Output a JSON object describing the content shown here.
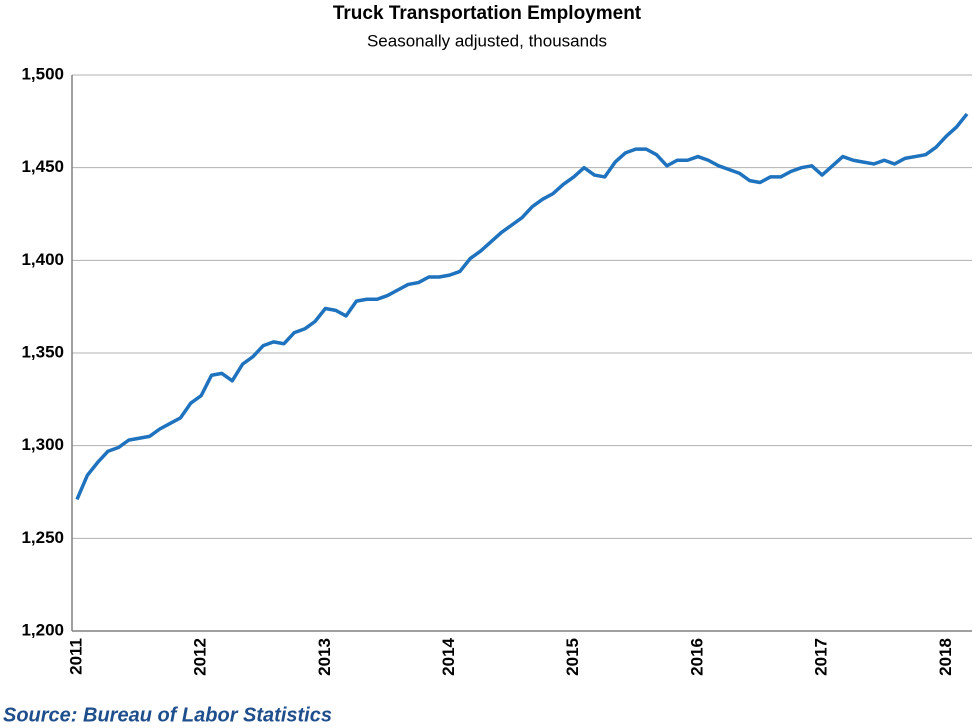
{
  "chart_data": {
    "type": "line",
    "title": "Truck Transportation Employment",
    "subtitle": "Seasonally adjusted, thousands",
    "source": "Source: Bureau of Labor Statistics",
    "categories": [
      "2011",
      null,
      null,
      null,
      null,
      null,
      null,
      null,
      null,
      null,
      null,
      null,
      "2012",
      null,
      null,
      null,
      null,
      null,
      null,
      null,
      null,
      null,
      null,
      null,
      "2013",
      null,
      null,
      null,
      null,
      null,
      null,
      null,
      null,
      null,
      null,
      null,
      "2014",
      null,
      null,
      null,
      null,
      null,
      null,
      null,
      null,
      null,
      null,
      null,
      "2015",
      null,
      null,
      null,
      null,
      null,
      null,
      null,
      null,
      null,
      null,
      null,
      "2016",
      null,
      null,
      null,
      null,
      null,
      null,
      null,
      null,
      null,
      null,
      null,
      "2017",
      null,
      null,
      null,
      null,
      null,
      null,
      null,
      null,
      null,
      null,
      null,
      "2018",
      null,
      null
    ],
    "values": [
      1271,
      1284,
      1291,
      1297,
      1299,
      1303,
      1304,
      1305,
      1309,
      1312,
      1315,
      1323,
      1327,
      1338,
      1339,
      1335,
      1344,
      1348,
      1354,
      1356,
      1355,
      1361,
      1363,
      1367,
      1374,
      1373,
      1370,
      1378,
      1379,
      1379,
      1381,
      1384,
      1387,
      1388,
      1391,
      1391,
      1392,
      1394,
      1401,
      1405,
      1410,
      1415,
      1419,
      1423,
      1429,
      1433,
      1436,
      1441,
      1445,
      1450,
      1446,
      1445,
      1453,
      1458,
      1460,
      1460,
      1457,
      1451,
      1454,
      1454,
      1456,
      1454,
      1451,
      1449,
      1447,
      1443,
      1442,
      1445,
      1445,
      1448,
      1450,
      1451,
      1446,
      1451,
      1456,
      1454,
      1453,
      1452,
      1454,
      1452,
      1455,
      1456,
      1457,
      1461,
      1467,
      1472,
      1479
    ],
    "color": "#1f72bd",
    "ylim": [
      1200,
      1500
    ],
    "yticks": [
      {
        "value": 1200,
        "label": "1,200"
      },
      {
        "value": 1250,
        "label": "1,250"
      },
      {
        "value": 1300,
        "label": "1,300"
      },
      {
        "value": 1350,
        "label": "1,350"
      },
      {
        "value": 1400,
        "label": "1,400"
      },
      {
        "value": 1450,
        "label": "1,450"
      },
      {
        "value": 1500,
        "label": "1,500"
      }
    ],
    "grid": true
  }
}
